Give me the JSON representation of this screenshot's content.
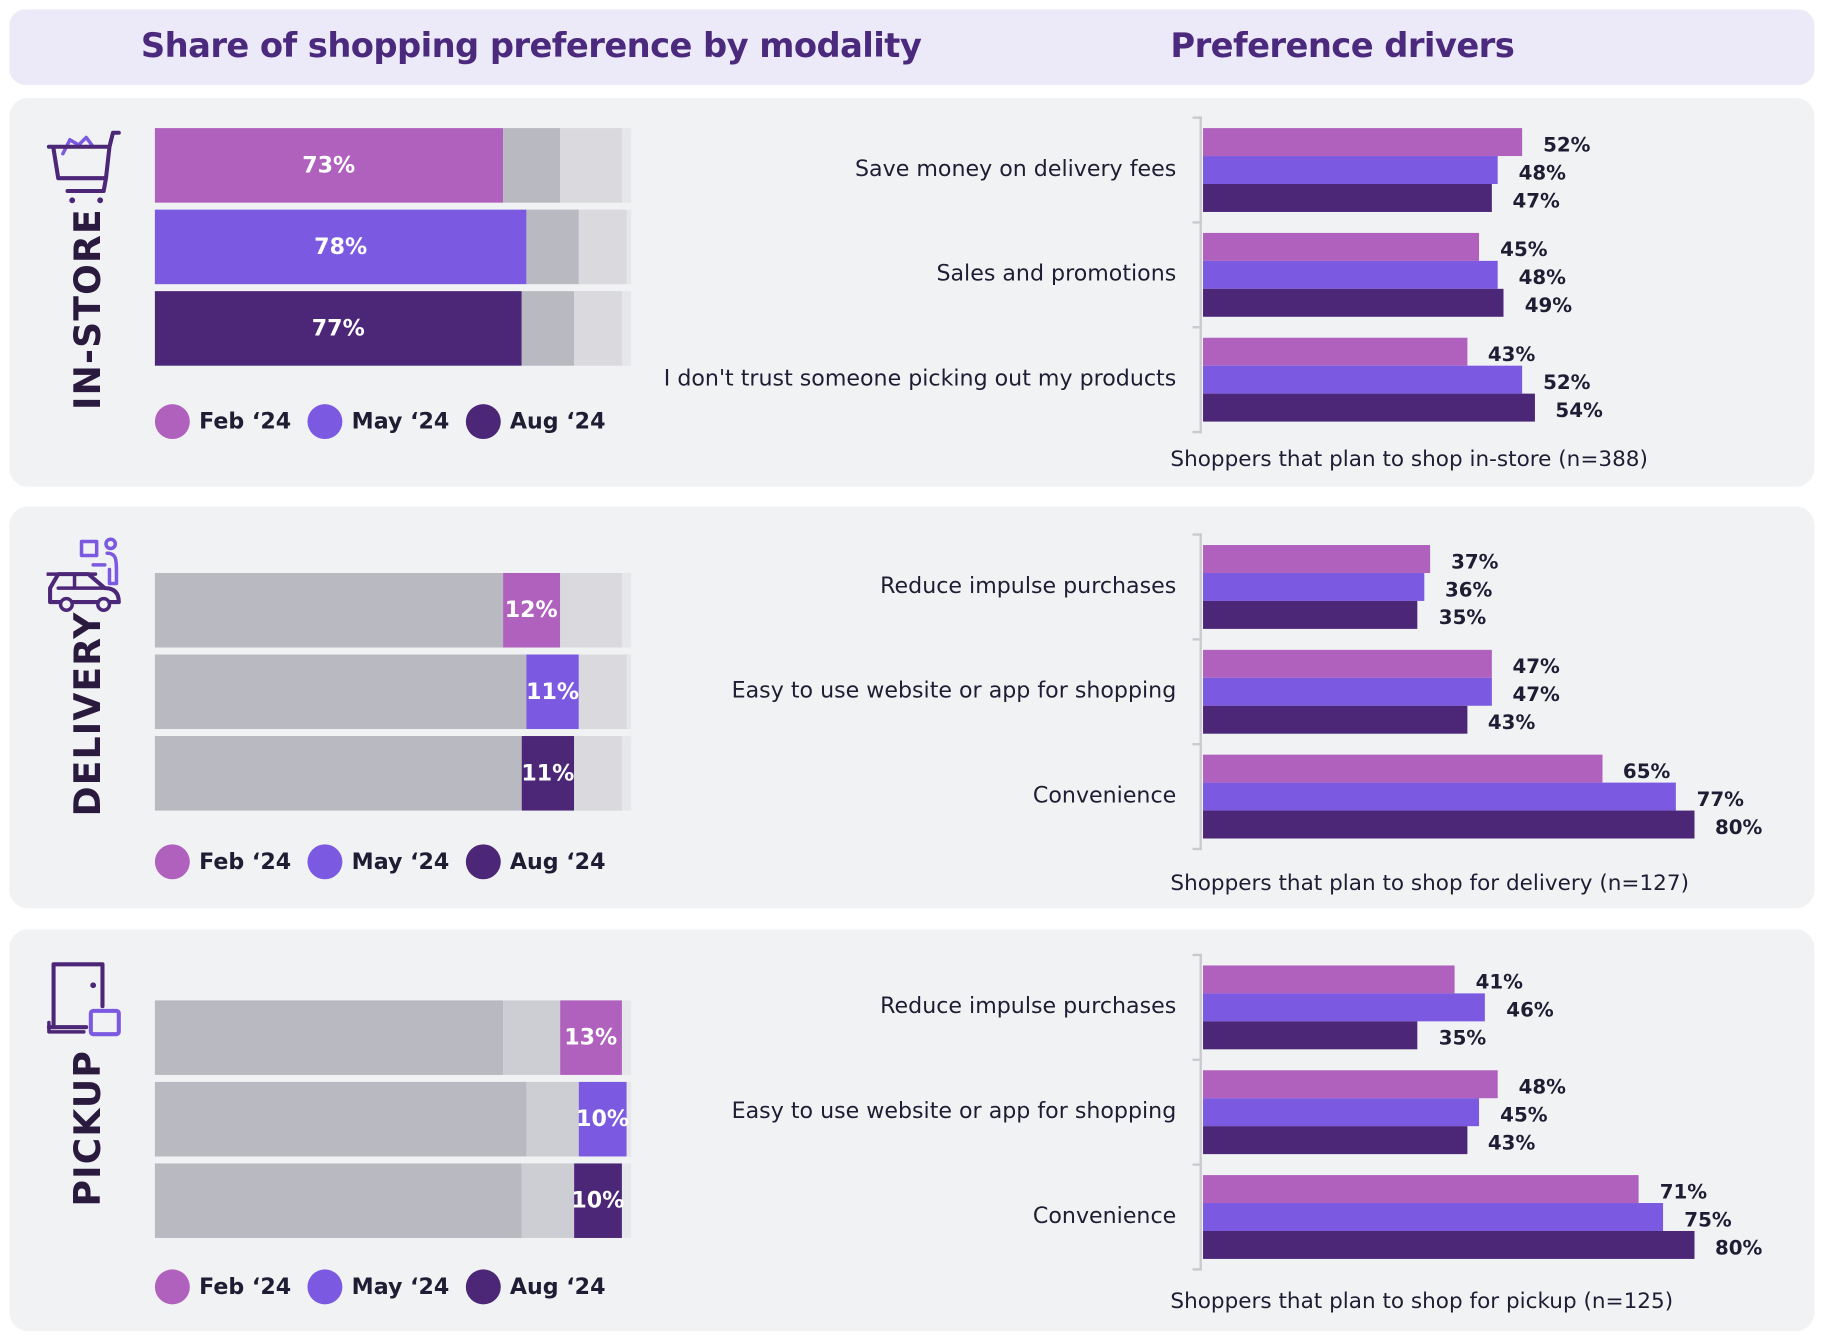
{
  "header": {
    "left_title": "Share of shopping preference by modality",
    "right_title": "Preference drivers"
  },
  "colors": {
    "feb": "#b060bd",
    "may": "#7b59e0",
    "aug": "#4c2677",
    "gray_dark": "#b9b9c1",
    "gray_mid": "#cdced3",
    "gray_light": "#dadade",
    "gray_rest": "#e6e7ea"
  },
  "legend": [
    "Feb ‘24",
    "May ‘24",
    "Aug ‘24"
  ],
  "chart_data": [
    {
      "type": "bar",
      "stacked": true,
      "orientation": "horizontal",
      "title": "Share of shopping preference by modality",
      "categories": [
        "Feb ‘24",
        "May ‘24",
        "Aug ‘24"
      ],
      "series": [
        {
          "name": "IN-STORE",
          "values": [
            73,
            78,
            77
          ],
          "labels": [
            "73%",
            "78%",
            "77%"
          ]
        },
        {
          "name": "DELIVERY",
          "values": [
            12,
            11,
            11
          ],
          "labels": [
            "12%",
            "11%",
            "11%"
          ]
        },
        {
          "name": "PICKUP",
          "values": [
            13,
            10,
            10
          ],
          "labels": [
            "13%",
            "10%",
            "10%"
          ]
        }
      ],
      "xlim": [
        0,
        100
      ]
    },
    {
      "type": "bar",
      "orientation": "horizontal",
      "panel": "IN-STORE",
      "title": "Preference drivers",
      "categories": [
        "Save money on delivery fees",
        "Sales and promotions",
        "I don't trust someone picking out my products"
      ],
      "series": [
        {
          "name": "Feb ‘24",
          "values": [
            52,
            45,
            43
          ]
        },
        {
          "name": "May ‘24",
          "values": [
            48,
            48,
            52
          ]
        },
        {
          "name": "Aug ‘24",
          "values": [
            47,
            49,
            54
          ]
        }
      ],
      "note": "Shoppers that plan to shop in-store (n=388)"
    },
    {
      "type": "bar",
      "orientation": "horizontal",
      "panel": "DELIVERY",
      "categories": [
        "Reduce impulse purchases",
        "Easy to use website or app for shopping",
        "Convenience"
      ],
      "series": [
        {
          "name": "Feb ‘24",
          "values": [
            37,
            47,
            65
          ]
        },
        {
          "name": "May ‘24",
          "values": [
            36,
            47,
            77
          ]
        },
        {
          "name": "Aug ‘24",
          "values": [
            35,
            43,
            80
          ]
        }
      ],
      "note": "Shoppers that plan to shop for delivery (n=127)"
    },
    {
      "type": "bar",
      "orientation": "horizontal",
      "panel": "PICKUP",
      "categories": [
        "Reduce impulse purchases",
        "Easy to use website or app for shopping",
        "Convenience"
      ],
      "series": [
        {
          "name": "Feb ‘24",
          "values": [
            41,
            48,
            71
          ]
        },
        {
          "name": "May ‘24",
          "values": [
            46,
            45,
            75
          ]
        },
        {
          "name": "Aug ‘24",
          "values": [
            35,
            43,
            80
          ]
        }
      ],
      "note": "Shoppers that plan to shop for pickup (n=125)"
    }
  ],
  "panels": [
    {
      "label": "IN-STORE",
      "icon": "shopping-cart-icon"
    },
    {
      "label": "DELIVERY",
      "icon": "delivery-car-icon"
    },
    {
      "label": "PICKUP",
      "icon": "pickup-locker-icon"
    }
  ]
}
